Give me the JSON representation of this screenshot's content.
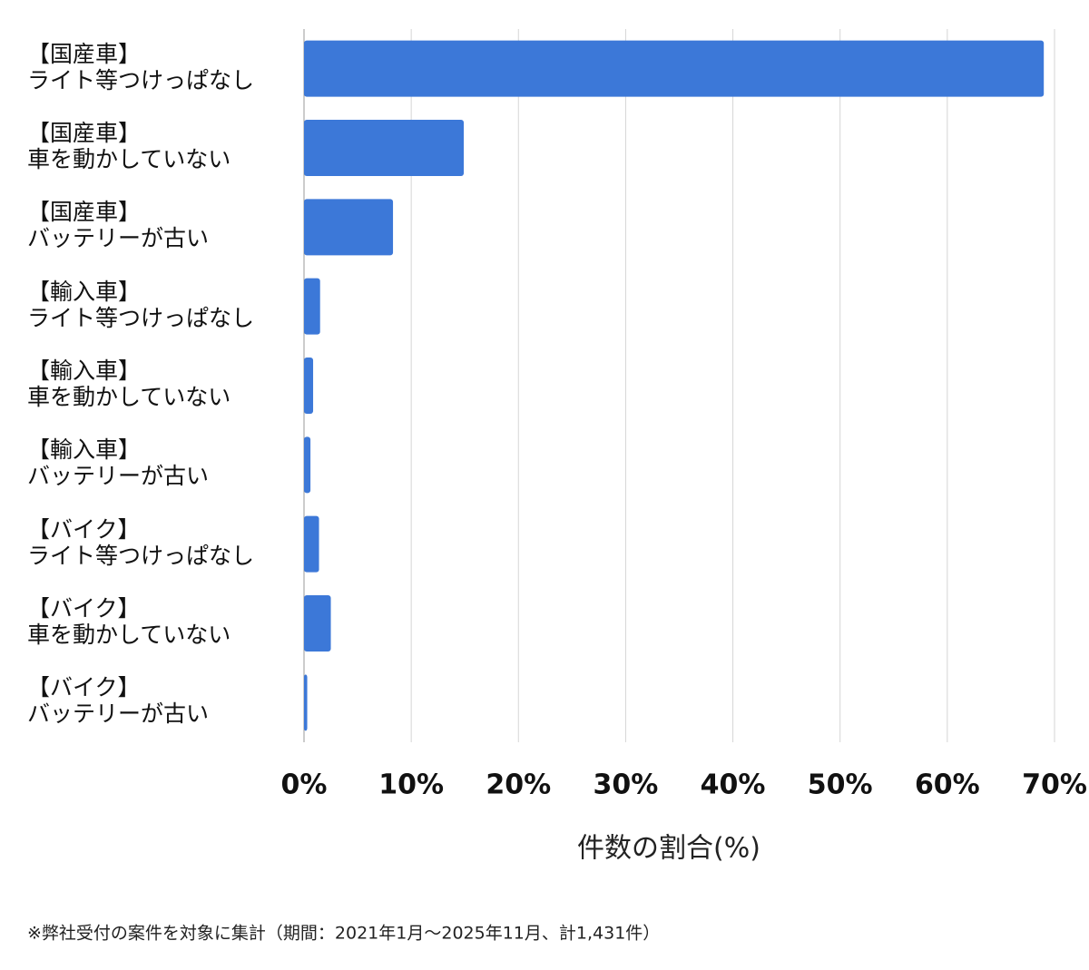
{
  "chart_data": {
    "type": "barh",
    "categories": [
      "【国産車】\nライト等つけっぱなし",
      "【国産車】\n車を動かしていない",
      "【国産車】\nバッテリーが古い",
      "【輸入車】\nライト等つけっぱなし",
      "【輸入車】\n車を動かしていない",
      "【輸入車】\nバッテリーが古い",
      "【バイク】\nライト等つけっぱなし",
      "【バイク】\n車を動かしていない",
      "【バイク】\nバッテリーが古い"
    ],
    "values": [
      69.0,
      14.9,
      8.3,
      1.5,
      0.85,
      0.6,
      1.4,
      2.5,
      0.3
    ],
    "color": "#3c78d8",
    "xlim": [
      0,
      70
    ],
    "xticks": [
      {
        "value": 0,
        "label": "0%"
      },
      {
        "value": 10,
        "label": "10%"
      },
      {
        "value": 20,
        "label": "20%"
      },
      {
        "value": 30,
        "label": "30%"
      },
      {
        "value": 40,
        "label": "40%"
      },
      {
        "value": 50,
        "label": "50%"
      },
      {
        "value": 60,
        "label": "60%"
      },
      {
        "value": 70,
        "label": "70%"
      }
    ],
    "grid": true,
    "x_label": "件数の割合(%)",
    "note": "※弊社受付の案件を対象に集計（期間：2021年1月〜2025年11月、計1,431件）"
  }
}
